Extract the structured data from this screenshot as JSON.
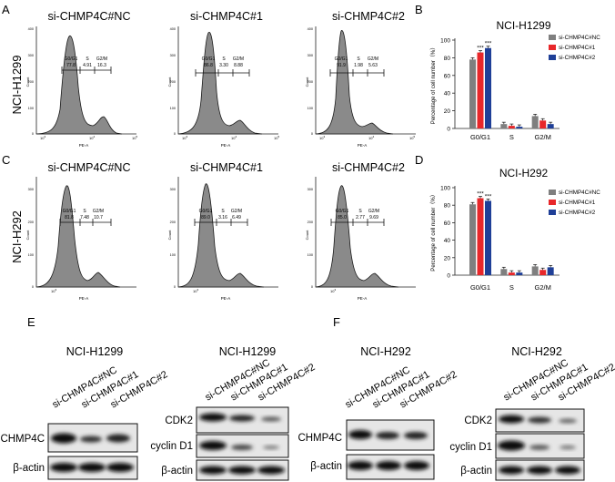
{
  "panel_letters": {
    "a": "A",
    "b": "B",
    "c": "C",
    "d": "D",
    "e": "E",
    "f": "F"
  },
  "rows": [
    {
      "cell_line": "NCI-H1299",
      "hists": [
        {
          "title": "si-CHMP4C#NC",
          "labels": [
            "G0/G1",
            "S",
            "G2/M"
          ],
          "values": [
            "77.8",
            "4.91",
            "16.3"
          ]
        },
        {
          "title": "si-CHMP4C#1",
          "labels": [
            "G0/G1",
            "S",
            "G2/M"
          ],
          "values": [
            "86.8",
            "3.30",
            "8.88"
          ]
        },
        {
          "title": "si-CHMP4C#2",
          "labels": [
            "G0/G1",
            "S",
            "G2/M"
          ],
          "values": [
            "91.9",
            "1.98",
            "5.63"
          ]
        }
      ]
    },
    {
      "cell_line": "NCI-H292",
      "hists": [
        {
          "title": "si-CHMP4C#NC",
          "labels": [
            "G0/G1",
            "S",
            "G2/M"
          ],
          "values": [
            "81.8",
            "7.48",
            "10.7"
          ]
        },
        {
          "title": "si-CHMP4C#1",
          "labels": [
            "G0/G1",
            "S",
            "G2/M"
          ],
          "values": [
            "89.0",
            "3.16",
            "6.49"
          ]
        },
        {
          "title": "si-CHMP4C#2",
          "labels": [
            "G0/G1",
            "S",
            "G2/M"
          ],
          "values": [
            "85.0",
            "2.77",
            "9.69"
          ]
        }
      ]
    }
  ],
  "axis": {
    "ylabel": "Count",
    "xlabel": "PE-A",
    "xticks": [
      {
        "b": "10",
        "e": "3"
      },
      {
        "b": "10",
        "e": "4"
      },
      {
        "b": "10",
        "e": "5"
      }
    ],
    "yticks_r1": [
      [
        "400",
        "400",
        "400"
      ],
      [
        "300",
        "300",
        "300"
      ],
      [
        "200",
        "200",
        "200"
      ],
      [
        "100",
        "100",
        "100"
      ],
      [
        "0",
        "0",
        "0"
      ]
    ],
    "yticks_r2": [
      [
        "300",
        "300",
        "300"
      ],
      [
        "200",
        "200",
        "200"
      ],
      [
        "100",
        "100",
        "100"
      ],
      [
        "0",
        "0",
        "0"
      ]
    ]
  },
  "chart_data": [
    {
      "type": "bar",
      "title": "NCI-H1299",
      "categories": [
        "G0/G1",
        "S",
        "G2/M"
      ],
      "series": [
        {
          "name": "si-CHMP4C#NC",
          "color": "#7f7f7f",
          "values": [
            78,
            5,
            14
          ]
        },
        {
          "name": "si-CHMP4C#1",
          "color": "#e8272a",
          "values": [
            86,
            3,
            9
          ]
        },
        {
          "name": "si-CHMP4C#2",
          "color": "#1f3f97",
          "values": [
            91,
            2,
            5
          ]
        }
      ],
      "ylabel": "Percentage of cell number（%）",
      "ylim": [
        0,
        100
      ],
      "yticks": [
        "0",
        "20",
        "40",
        "60",
        "80",
        "100"
      ],
      "annotations": [
        "***",
        "***"
      ],
      "legend": "top-right"
    },
    {
      "type": "bar",
      "title": "NCI-H292",
      "categories": [
        "G0/G1",
        "S",
        "G2/M"
      ],
      "series": [
        {
          "name": "si-CHMP4C#NC",
          "color": "#7f7f7f",
          "values": [
            81,
            7,
            10
          ]
        },
        {
          "name": "si-CHMP4C#1",
          "color": "#e8272a",
          "values": [
            88,
            3,
            6
          ]
        },
        {
          "name": "si-CHMP4C#2",
          "color": "#1f3f97",
          "values": [
            85,
            3,
            9
          ]
        }
      ],
      "ylabel": "Percentage of cell number（%）",
      "ylim": [
        0,
        100
      ],
      "yticks": [
        "0",
        "20",
        "40",
        "60",
        "80",
        "100"
      ],
      "annotations": [
        "***",
        "***"
      ],
      "legend": "top-right"
    }
  ],
  "blots": {
    "e": {
      "title_left": "NCI-H1299",
      "title_right": "NCI-H1299"
    },
    "f": {
      "title_left": "NCI-H292",
      "title_right": "NCI-H292"
    },
    "lanes": [
      "si-CHMP4C#NC",
      "si-CHMP4C#1",
      "si-CHMP4C#2"
    ],
    "proteins": {
      "chmp4c": "CHMP4C",
      "actin": "β-actin",
      "cdk2": "CDK2",
      "cyclin": "cyclin D1"
    }
  }
}
